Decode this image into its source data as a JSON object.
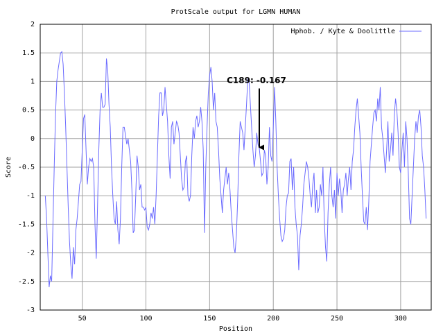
{
  "chart_data": {
    "type": "line",
    "title": "ProtScale output for LGMN HUMAN",
    "x_label": "Position",
    "y_label": "Score",
    "xlim": [
      17,
      324
    ],
    "ylim": [
      -3,
      2
    ],
    "xticks": [
      50,
      100,
      150,
      200,
      250,
      300
    ],
    "yticks": [
      -3,
      -2.5,
      -2,
      -1.5,
      -1,
      -0.5,
      0,
      0.5,
      1,
      1.5,
      2
    ],
    "grid": true,
    "legend": "top-right",
    "annotation": {
      "text": "C189: -0.167",
      "x": 189,
      "y": -0.167
    },
    "x": [
      21,
      22,
      23,
      24,
      25,
      26,
      27,
      28,
      29,
      30,
      31,
      32,
      33,
      34,
      35,
      36,
      37,
      38,
      39,
      40,
      41,
      42,
      43,
      44,
      45,
      46,
      47,
      48,
      49,
      50,
      51,
      52,
      53,
      54,
      55,
      56,
      57,
      58,
      59,
      60,
      61,
      62,
      63,
      64,
      65,
      66,
      67,
      68,
      69,
      70,
      71,
      72,
      73,
      74,
      75,
      76,
      77,
      78,
      79,
      80,
      81,
      82,
      83,
      84,
      85,
      86,
      87,
      88,
      89,
      90,
      91,
      92,
      93,
      94,
      95,
      96,
      97,
      98,
      99,
      100,
      101,
      102,
      103,
      104,
      105,
      106,
      107,
      108,
      109,
      110,
      111,
      112,
      113,
      114,
      115,
      116,
      117,
      118,
      119,
      120,
      121,
      122,
      123,
      124,
      125,
      126,
      127,
      128,
      129,
      130,
      131,
      132,
      133,
      134,
      135,
      136,
      137,
      138,
      139,
      140,
      141,
      142,
      143,
      144,
      145,
      146,
      147,
      148,
      149,
      150,
      151,
      152,
      153,
      154,
      155,
      156,
      157,
      158,
      159,
      160,
      161,
      162,
      163,
      164,
      165,
      166,
      167,
      168,
      169,
      170,
      171,
      172,
      173,
      174,
      175,
      176,
      177,
      178,
      179,
      180,
      181,
      182,
      183,
      184,
      185,
      186,
      187,
      188,
      189,
      190,
      191,
      192,
      193,
      194,
      195,
      196,
      197,
      198,
      199,
      200,
      201,
      202,
      203,
      204,
      205,
      206,
      207,
      208,
      209,
      210,
      211,
      212,
      213,
      214,
      215,
      216,
      217,
      218,
      219,
      220,
      221,
      222,
      223,
      224,
      225,
      226,
      227,
      228,
      229,
      230,
      231,
      232,
      233,
      234,
      235,
      236,
      237,
      238,
      239,
      240,
      241,
      242,
      243,
      244,
      245,
      246,
      247,
      248,
      249,
      250,
      251,
      252,
      253,
      254,
      255,
      256,
      257,
      258,
      259,
      260,
      261,
      262,
      263,
      264,
      265,
      266,
      267,
      268,
      269,
      270,
      271,
      272,
      273,
      274,
      275,
      276,
      277,
      278,
      279,
      280,
      281,
      282,
      283,
      284,
      285,
      286,
      287,
      288,
      289,
      290,
      291,
      292,
      293,
      294,
      295,
      296,
      297,
      298,
      299,
      300,
      301,
      302,
      303,
      304,
      305,
      306,
      307,
      308,
      309,
      310,
      311,
      312,
      313,
      314,
      315,
      316,
      317,
      318,
      319,
      320
    ],
    "series": [
      {
        "name": "Hphob. / Kyte & Doolittle",
        "color": "#6b6bff",
        "values": [
          -1.0,
          -1.4,
          -2.0,
          -2.6,
          -2.4,
          -2.5,
          -1.5,
          -0.5,
          0.4,
          1.0,
          1.2,
          1.35,
          1.5,
          1.52,
          1.3,
          0.8,
          0.2,
          -0.5,
          -1.2,
          -1.8,
          -2.2,
          -2.45,
          -1.9,
          -2.2,
          -1.6,
          -1.4,
          -1.1,
          -0.8,
          -0.75,
          -0.2,
          0.35,
          0.42,
          -0.2,
          -0.8,
          -0.5,
          -0.35,
          -0.4,
          -0.35,
          -0.5,
          -1.5,
          -2.1,
          -1.2,
          -0.2,
          0.5,
          0.8,
          0.55,
          0.55,
          0.6,
          1.4,
          1.2,
          0.6,
          0.2,
          -0.5,
          -1.0,
          -1.4,
          -1.5,
          -1.1,
          -1.6,
          -1.85,
          -1.4,
          -0.5,
          0.2,
          0.2,
          0.05,
          -0.1,
          0.0,
          -0.2,
          -0.4,
          -0.9,
          -1.65,
          -1.6,
          -1.0,
          -0.3,
          -0.5,
          -0.9,
          -0.8,
          -1.2,
          -1.2,
          -1.25,
          -1.2,
          -1.55,
          -1.6,
          -1.5,
          -1.3,
          -1.4,
          -1.2,
          -1.5,
          -1.0,
          -0.3,
          0.4,
          0.8,
          0.8,
          0.4,
          0.5,
          0.9,
          0.6,
          0.3,
          -0.3,
          -0.7,
          0.2,
          0.3,
          -0.1,
          0.1,
          0.3,
          0.25,
          0.1,
          -0.3,
          -0.7,
          -0.9,
          -0.85,
          -0.4,
          -0.3,
          -1.0,
          -1.1,
          -1.0,
          -0.3,
          0.2,
          0.0,
          0.3,
          0.4,
          0.2,
          0.3,
          0.55,
          0.3,
          -0.2,
          -1.65,
          -0.5,
          0.2,
          0.8,
          1.1,
          1.25,
          1.0,
          0.5,
          0.8,
          0.3,
          0.2,
          -0.2,
          -0.7,
          -1.0,
          -1.3,
          -0.9,
          -0.7,
          -0.5,
          -0.8,
          -0.6,
          -0.9,
          -1.3,
          -1.6,
          -1.9,
          -2.0,
          -1.7,
          -1.1,
          -0.3,
          0.3,
          0.2,
          0.1,
          -0.2,
          0.2,
          0.6,
          1.05,
          1.0,
          0.6,
          0.2,
          -0.2,
          -0.5,
          -0.3,
          0.1,
          -0.1,
          -0.167,
          -0.4,
          -0.65,
          -0.6,
          -0.2,
          -0.3,
          -0.8,
          -0.5,
          0.2,
          -0.3,
          -0.4,
          0.2,
          0.9,
          0.3,
          -0.5,
          -1.0,
          -1.4,
          -1.7,
          -1.8,
          -1.75,
          -1.6,
          -1.2,
          -1.0,
          -0.95,
          -0.4,
          -0.35,
          -0.9,
          -0.5,
          -1.2,
          -1.5,
          -1.7,
          -2.3,
          -1.7,
          -1.5,
          -1.2,
          -0.8,
          -0.6,
          -0.4,
          -0.5,
          -0.7,
          -1.0,
          -1.2,
          -0.8,
          -0.6,
          -1.3,
          -0.9,
          -1.3,
          -1.2,
          -0.8,
          -1.0,
          -0.5,
          -1.4,
          -1.9,
          -2.15,
          -1.3,
          -0.8,
          -0.5,
          -1.0,
          -1.2,
          -0.9,
          -1.4,
          -0.6,
          -1.0,
          -0.7,
          -0.9,
          -1.3,
          -0.9,
          -0.8,
          -0.6,
          -1.0,
          -0.7,
          -0.5,
          -0.9,
          -0.4,
          -0.2,
          0.2,
          0.5,
          0.7,
          0.4,
          0.1,
          -0.5,
          -1.0,
          -1.45,
          -1.5,
          -1.2,
          -1.6,
          -1.1,
          -0.4,
          -0.1,
          0.2,
          0.45,
          0.5,
          0.3,
          0.7,
          0.5,
          0.9,
          0.2,
          0.0,
          -0.3,
          -0.6,
          -0.2,
          0.3,
          -0.4,
          -0.2,
          0.1,
          -0.3,
          0.4,
          0.7,
          0.5,
          0.1,
          -0.5,
          -0.6,
          -0.2,
          0.1,
          -0.5,
          0.3,
          0.0,
          -0.6,
          -1.4,
          -1.5,
          -1.0,
          -0.5,
          0.0,
          0.3,
          0.1,
          0.4,
          0.5,
          0.2,
          -0.3,
          -0.5,
          -0.9,
          -1.4
        ]
      }
    ]
  }
}
